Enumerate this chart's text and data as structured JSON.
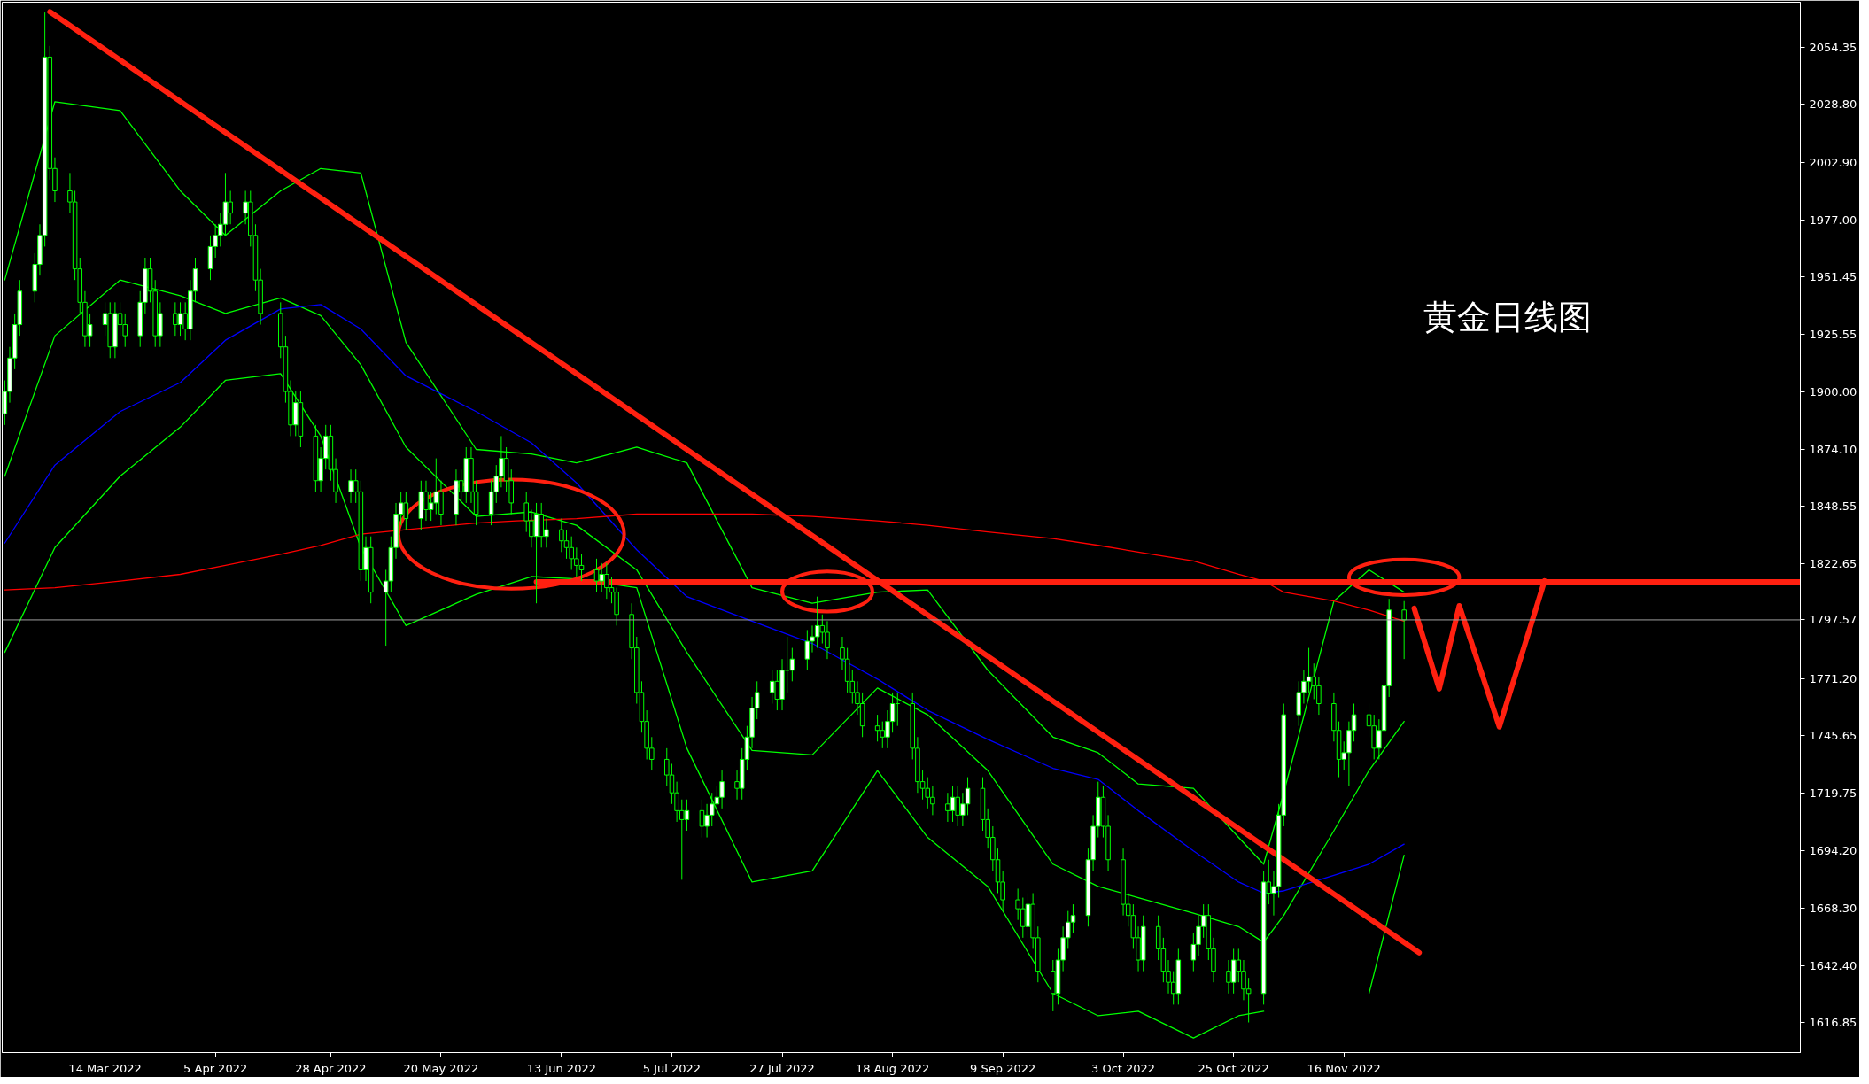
{
  "chart_data": {
    "type": "candlestick",
    "title": "黄金日线图",
    "x": [
      "2022-02-22",
      "2022-02-23",
      "2022-02-24",
      "2022-02-25",
      "2022-02-28",
      "2022-03-01",
      "2022-03-02",
      "2022-03-03",
      "2022-03-04",
      "2022-03-07",
      "2022-03-08",
      "2022-03-09",
      "2022-03-10",
      "2022-03-11",
      "2022-03-14",
      "2022-03-15",
      "2022-03-16",
      "2022-03-17",
      "2022-03-18",
      "2022-03-21",
      "2022-03-22",
      "2022-03-23",
      "2022-03-24",
      "2022-03-25",
      "2022-03-28",
      "2022-03-29",
      "2022-03-30",
      "2022-03-31",
      "2022-04-01",
      "2022-04-04",
      "2022-04-05",
      "2022-04-06",
      "2022-04-07",
      "2022-04-08",
      "2022-04-11",
      "2022-04-12",
      "2022-04-13",
      "2022-04-14",
      "2022-04-18",
      "2022-04-19",
      "2022-04-20",
      "2022-04-21",
      "2022-04-22",
      "2022-04-25",
      "2022-04-26",
      "2022-04-27",
      "2022-04-28",
      "2022-04-29",
      "2022-05-02",
      "2022-05-03",
      "2022-05-04",
      "2022-05-05",
      "2022-05-06",
      "2022-05-09",
      "2022-05-10",
      "2022-05-11",
      "2022-05-12",
      "2022-05-13",
      "2022-05-16",
      "2022-05-17",
      "2022-05-18",
      "2022-05-19",
      "2022-05-20",
      "2022-05-23",
      "2022-05-24",
      "2022-05-25",
      "2022-05-26",
      "2022-05-27",
      "2022-05-30",
      "2022-05-31",
      "2022-06-01",
      "2022-06-02",
      "2022-06-03",
      "2022-06-06",
      "2022-06-07",
      "2022-06-08",
      "2022-06-09",
      "2022-06-10",
      "2022-06-13",
      "2022-06-14",
      "2022-06-15",
      "2022-06-16",
      "2022-06-17",
      "2022-06-20",
      "2022-06-21",
      "2022-06-22",
      "2022-06-23",
      "2022-06-24",
      "2022-06-27",
      "2022-06-28",
      "2022-06-29",
      "2022-06-30",
      "2022-07-01",
      "2022-07-04",
      "2022-07-05",
      "2022-07-06",
      "2022-07-07",
      "2022-07-08",
      "2022-07-11",
      "2022-07-12",
      "2022-07-13",
      "2022-07-14",
      "2022-07-15",
      "2022-07-18",
      "2022-07-19",
      "2022-07-20",
      "2022-07-21",
      "2022-07-22",
      "2022-07-25",
      "2022-07-26",
      "2022-07-27",
      "2022-07-28",
      "2022-07-29",
      "2022-08-01",
      "2022-08-02",
      "2022-08-03",
      "2022-08-04",
      "2022-08-05",
      "2022-08-08",
      "2022-08-09",
      "2022-08-10",
      "2022-08-11",
      "2022-08-12",
      "2022-08-15",
      "2022-08-16",
      "2022-08-17",
      "2022-08-18",
      "2022-08-19",
      "2022-08-22",
      "2022-08-23",
      "2022-08-24",
      "2022-08-25",
      "2022-08-26",
      "2022-08-29",
      "2022-08-30",
      "2022-08-31",
      "2022-09-01",
      "2022-09-02",
      "2022-09-05",
      "2022-09-06",
      "2022-09-07",
      "2022-09-08",
      "2022-09-09",
      "2022-09-12",
      "2022-09-13",
      "2022-09-14",
      "2022-09-15",
      "2022-09-16",
      "2022-09-19",
      "2022-09-20",
      "2022-09-21",
      "2022-09-22",
      "2022-09-23",
      "2022-09-26",
      "2022-09-27",
      "2022-09-28",
      "2022-09-29",
      "2022-09-30",
      "2022-10-03",
      "2022-10-04",
      "2022-10-05",
      "2022-10-06",
      "2022-10-07",
      "2022-10-10",
      "2022-10-11",
      "2022-10-12",
      "2022-10-13",
      "2022-10-14",
      "2022-10-17",
      "2022-10-18",
      "2022-10-19",
      "2022-10-20",
      "2022-10-21",
      "2022-10-24",
      "2022-10-25",
      "2022-10-26",
      "2022-10-27",
      "2022-10-28",
      "2022-10-31",
      "2022-11-01",
      "2022-11-02",
      "2022-11-03",
      "2022-11-04",
      "2022-11-07",
      "2022-11-08",
      "2022-11-09",
      "2022-11-10",
      "2022-11-11",
      "2022-11-14",
      "2022-11-15",
      "2022-11-16",
      "2022-11-17",
      "2022-11-18",
      "2022-11-21",
      "2022-11-22",
      "2022-11-23",
      "2022-11-24",
      "2022-11-25",
      "2022-11-28"
    ],
    "ohlc": [
      [
        1890,
        1905,
        1885,
        1900
      ],
      [
        1900,
        1920,
        1895,
        1915
      ],
      [
        1915,
        1935,
        1910,
        1930
      ],
      [
        1930,
        1950,
        1925,
        1945
      ],
      [
        1945,
        1962,
        1940,
        1957
      ],
      [
        1957,
        1975,
        1952,
        1970
      ],
      [
        1970,
        2070,
        1965,
        2050
      ],
      [
        2050,
        2055,
        1995,
        2000
      ],
      [
        2000,
        2005,
        1985,
        1990
      ],
      [
        1990,
        1998,
        1980,
        1985
      ],
      [
        1985,
        1990,
        1950,
        1955
      ],
      [
        1955,
        1960,
        1935,
        1940
      ],
      [
        1940,
        1945,
        1920,
        1925
      ],
      [
        1925,
        1935,
        1920,
        1930
      ],
      [
        1930,
        1940,
        1925,
        1935
      ],
      [
        1935,
        1940,
        1915,
        1920
      ],
      [
        1920,
        1940,
        1915,
        1935
      ],
      [
        1935,
        1940,
        1925,
        1930
      ],
      [
        1930,
        1935,
        1920,
        1925
      ],
      [
        1925,
        1945,
        1920,
        1940
      ],
      [
        1940,
        1960,
        1935,
        1955
      ],
      [
        1955,
        1960,
        1940,
        1945
      ],
      [
        1945,
        1950,
        1920,
        1925
      ],
      [
        1925,
        1940,
        1920,
        1935
      ],
      [
        1935,
        1940,
        1925,
        1930
      ],
      [
        1930,
        1940,
        1925,
        1935
      ],
      [
        1935,
        1940,
        1923,
        1928
      ],
      [
        1928,
        1950,
        1923,
        1945
      ],
      [
        1945,
        1960,
        1940,
        1955
      ],
      [
        1955,
        1970,
        1950,
        1965
      ],
      [
        1965,
        1975,
        1960,
        1970
      ],
      [
        1970,
        1980,
        1965,
        1975
      ],
      [
        1975,
        1998,
        1970,
        1985
      ],
      [
        1985,
        1990,
        1975,
        1980
      ],
      [
        1980,
        1990,
        1975,
        1985
      ],
      [
        1985,
        1990,
        1965,
        1970
      ],
      [
        1970,
        1975,
        1945,
        1950
      ],
      [
        1950,
        1955,
        1930,
        1935
      ],
      [
        1935,
        1940,
        1915,
        1920
      ],
      [
        1920,
        1925,
        1895,
        1900
      ],
      [
        1900,
        1905,
        1880,
        1885
      ],
      [
        1885,
        1900,
        1880,
        1895
      ],
      [
        1895,
        1900,
        1875,
        1880
      ],
      [
        1880,
        1885,
        1855,
        1860
      ],
      [
        1860,
        1875,
        1855,
        1870
      ],
      [
        1870,
        1885,
        1865,
        1880
      ],
      [
        1880,
        1885,
        1860,
        1865
      ],
      [
        1865,
        1870,
        1850,
        1855
      ],
      [
        1855,
        1865,
        1850,
        1860
      ],
      [
        1860,
        1865,
        1850,
        1855
      ],
      [
        1855,
        1860,
        1815,
        1820
      ],
      [
        1820,
        1835,
        1815,
        1830
      ],
      [
        1830,
        1835,
        1805,
        1810
      ],
      [
        1810,
        1820,
        1786,
        1815
      ],
      [
        1815,
        1835,
        1810,
        1830
      ],
      [
        1830,
        1850,
        1825,
        1845
      ],
      [
        1845,
        1855,
        1840,
        1850
      ],
      [
        1850,
        1855,
        1838,
        1843
      ],
      [
        1843,
        1860,
        1838,
        1855
      ],
      [
        1855,
        1860,
        1842,
        1847
      ],
      [
        1847,
        1855,
        1842,
        1850
      ],
      [
        1850,
        1870,
        1845,
        1855
      ],
      [
        1855,
        1860,
        1840,
        1845
      ],
      [
        1845,
        1865,
        1840,
        1860
      ],
      [
        1860,
        1865,
        1850,
        1855
      ],
      [
        1855,
        1875,
        1850,
        1870
      ],
      [
        1870,
        1875,
        1850,
        1855
      ],
      [
        1855,
        1860,
        1840,
        1845
      ],
      [
        1845,
        1860,
        1840,
        1855
      ],
      [
        1855,
        1867,
        1850,
        1862
      ],
      [
        1862,
        1880,
        1857,
        1870
      ],
      [
        1870,
        1875,
        1855,
        1860
      ],
      [
        1860,
        1865,
        1845,
        1850
      ],
      [
        1850,
        1855,
        1837,
        1842
      ],
      [
        1842,
        1847,
        1830,
        1835
      ],
      [
        1835,
        1850,
        1805,
        1845
      ],
      [
        1845,
        1850,
        1830,
        1835
      ],
      [
        1835,
        1843,
        1830,
        1838
      ],
      [
        1838,
        1843,
        1828,
        1833
      ],
      [
        1833,
        1838,
        1825,
        1830
      ],
      [
        1830,
        1835,
        1820,
        1825
      ],
      [
        1825,
        1830,
        1817,
        1822
      ],
      [
        1822,
        1827,
        1815,
        1820
      ],
      [
        1820,
        1825,
        1810,
        1815
      ],
      [
        1815,
        1823,
        1810,
        1818
      ],
      [
        1818,
        1823,
        1807,
        1812
      ],
      [
        1812,
        1817,
        1805,
        1810
      ],
      [
        1810,
        1812,
        1795,
        1800
      ],
      [
        1800,
        1805,
        1780,
        1785
      ],
      [
        1785,
        1790,
        1760,
        1765
      ],
      [
        1765,
        1770,
        1747,
        1752
      ],
      [
        1752,
        1757,
        1735,
        1740
      ],
      [
        1740,
        1745,
        1730,
        1735
      ],
      [
        1735,
        1740,
        1723,
        1728
      ],
      [
        1728,
        1733,
        1715,
        1720
      ],
      [
        1720,
        1725,
        1707,
        1712
      ],
      [
        1712,
        1717,
        1681,
        1708
      ],
      [
        1708,
        1717,
        1703,
        1712
      ],
      [
        1712,
        1717,
        1700,
        1705
      ],
      [
        1705,
        1715,
        1700,
        1710
      ],
      [
        1710,
        1720,
        1705,
        1715
      ],
      [
        1715,
        1723,
        1710,
        1718
      ],
      [
        1718,
        1730,
        1713,
        1725
      ],
      [
        1725,
        1730,
        1717,
        1722
      ],
      [
        1722,
        1740,
        1717,
        1735
      ],
      [
        1735,
        1750,
        1730,
        1745
      ],
      [
        1745,
        1763,
        1740,
        1758
      ],
      [
        1758,
        1770,
        1753,
        1765
      ],
      [
        1765,
        1775,
        1760,
        1770
      ],
      [
        1770,
        1775,
        1757,
        1762
      ],
      [
        1762,
        1780,
        1757,
        1775
      ],
      [
        1775,
        1790,
        1765,
        1775
      ],
      [
        1775,
        1785,
        1770,
        1780
      ],
      [
        1780,
        1793,
        1775,
        1788
      ],
      [
        1788,
        1795,
        1783,
        1790
      ],
      [
        1790,
        1808,
        1785,
        1795
      ],
      [
        1795,
        1800,
        1787,
        1792
      ],
      [
        1792,
        1797,
        1780,
        1785
      ],
      [
        1785,
        1790,
        1775,
        1780
      ],
      [
        1780,
        1785,
        1765,
        1770
      ],
      [
        1770,
        1775,
        1760,
        1765
      ],
      [
        1765,
        1770,
        1755,
        1760
      ],
      [
        1760,
        1765,
        1745,
        1750
      ],
      [
        1750,
        1755,
        1743,
        1748
      ],
      [
        1748,
        1752,
        1740,
        1745
      ],
      [
        1745,
        1757,
        1740,
        1752
      ],
      [
        1752,
        1765,
        1747,
        1760
      ],
      [
        1760,
        1765,
        1750,
        1760
      ],
      [
        1760,
        1765,
        1735,
        1740
      ],
      [
        1740,
        1745,
        1720,
        1725
      ],
      [
        1725,
        1730,
        1717,
        1722
      ],
      [
        1722,
        1727,
        1713,
        1718
      ],
      [
        1718,
        1723,
        1710,
        1715
      ],
      [
        1715,
        1720,
        1707,
        1712
      ],
      [
        1712,
        1723,
        1707,
        1718
      ],
      [
        1718,
        1723,
        1705,
        1710
      ],
      [
        1710,
        1720,
        1705,
        1715
      ],
      [
        1715,
        1727,
        1710,
        1722
      ],
      [
        1722,
        1727,
        1703,
        1708
      ],
      [
        1708,
        1713,
        1695,
        1700
      ],
      [
        1700,
        1705,
        1685,
        1690
      ],
      [
        1690,
        1695,
        1675,
        1680
      ],
      [
        1680,
        1685,
        1667,
        1672
      ],
      [
        1672,
        1677,
        1663,
        1668
      ],
      [
        1668,
        1673,
        1655,
        1660
      ],
      [
        1660,
        1675,
        1655,
        1670
      ],
      [
        1670,
        1675,
        1650,
        1655
      ],
      [
        1655,
        1660,
        1635,
        1640
      ],
      [
        1640,
        1645,
        1622,
        1630
      ],
      [
        1630,
        1650,
        1625,
        1645
      ],
      [
        1645,
        1660,
        1640,
        1655
      ],
      [
        1655,
        1667,
        1650,
        1662
      ],
      [
        1662,
        1670,
        1657,
        1665
      ],
      [
        1665,
        1695,
        1660,
        1690
      ],
      [
        1690,
        1710,
        1685,
        1705
      ],
      [
        1705,
        1725,
        1700,
        1718
      ],
      [
        1718,
        1723,
        1700,
        1705
      ],
      [
        1705,
        1710,
        1685,
        1690
      ],
      [
        1690,
        1695,
        1665,
        1670
      ],
      [
        1670,
        1675,
        1660,
        1665
      ],
      [
        1665,
        1670,
        1650,
        1655
      ],
      [
        1655,
        1660,
        1640,
        1645
      ],
      [
        1645,
        1665,
        1640,
        1660
      ],
      [
        1660,
        1665,
        1645,
        1650
      ],
      [
        1650,
        1655,
        1635,
        1640
      ],
      [
        1640,
        1645,
        1630,
        1635
      ],
      [
        1635,
        1640,
        1625,
        1630
      ],
      [
        1630,
        1650,
        1625,
        1645
      ],
      [
        1645,
        1657,
        1640,
        1652
      ],
      [
        1652,
        1665,
        1647,
        1660
      ],
      [
        1660,
        1670,
        1655,
        1665
      ],
      [
        1665,
        1670,
        1645,
        1650
      ],
      [
        1650,
        1655,
        1635,
        1640
      ],
      [
        1640,
        1645,
        1630,
        1635
      ],
      [
        1635,
        1650,
        1630,
        1645
      ],
      [
        1645,
        1650,
        1635,
        1640
      ],
      [
        1640,
        1645,
        1627,
        1632
      ],
      [
        1632,
        1637,
        1617,
        1630
      ],
      [
        1630,
        1685,
        1625,
        1680
      ],
      [
        1680,
        1690,
        1670,
        1675
      ],
      [
        1675,
        1685,
        1665,
        1678
      ],
      [
        1678,
        1715,
        1673,
        1710
      ],
      [
        1710,
        1760,
        1705,
        1755
      ],
      [
        1755,
        1770,
        1750,
        1765
      ],
      [
        1765,
        1775,
        1760,
        1770
      ],
      [
        1770,
        1785,
        1765,
        1772
      ],
      [
        1772,
        1778,
        1762,
        1768
      ],
      [
        1768,
        1772,
        1755,
        1760
      ],
      [
        1760,
        1765,
        1743,
        1748
      ],
      [
        1748,
        1752,
        1727,
        1735
      ],
      [
        1735,
        1743,
        1730,
        1738
      ],
      [
        1738,
        1752,
        1723,
        1748
      ],
      [
        1748,
        1760,
        1743,
        1755
      ],
      [
        1755,
        1760,
        1745,
        1750
      ],
      [
        1750,
        1755,
        1735,
        1740
      ],
      [
        1740,
        1753,
        1735,
        1748
      ],
      [
        1748,
        1773,
        1743,
        1768
      ],
      [
        1768,
        1807,
        1763,
        1802
      ],
      [
        1802,
        1806,
        1780,
        1797.57
      ]
    ],
    "series": [
      {
        "type": "line",
        "color": "#00ff00",
        "x": [
          "2022-02-22",
          "2022-03-04",
          "2022-03-17",
          "2022-03-29",
          "2022-04-07",
          "2022-04-18",
          "2022-04-26",
          "2022-05-04",
          "2022-05-13",
          "2022-05-27",
          "2022-06-07",
          "2022-06-16",
          "2022-06-28",
          "2022-07-08",
          "2022-07-21",
          "2022-08-02",
          "2022-08-15",
          "2022-08-25",
          "2022-09-06",
          "2022-09-19",
          "2022-09-28",
          "2022-10-06",
          "2022-10-17",
          "2022-10-26",
          "2022-10-31",
          "2022-11-04",
          "2022-11-14",
          "2022-11-21",
          "2022-11-28"
        ],
        "values": [
          1950,
          2030,
          2026,
          1990,
          1970,
          1990,
          2000,
          1998,
          1922,
          1874,
          1872,
          1868,
          1875,
          1868,
          1812,
          1805,
          1810,
          1811,
          1775,
          1745,
          1738,
          1724,
          1722,
          1700,
          1688,
          1720,
          1806,
          1820,
          1810
        ]
      },
      {
        "type": "line",
        "color": "#00ff00",
        "x": [
          "2022-02-22",
          "2022-03-04",
          "2022-03-17",
          "2022-03-29",
          "2022-04-07",
          "2022-04-18",
          "2022-04-26",
          "2022-05-04",
          "2022-05-13",
          "2022-05-27",
          "2022-06-07",
          "2022-06-16",
          "2022-06-28",
          "2022-07-08",
          "2022-07-21",
          "2022-08-02",
          "2022-08-15",
          "2022-08-25",
          "2022-09-06",
          "2022-09-19",
          "2022-09-28",
          "2022-10-06",
          "2022-10-17",
          "2022-10-26",
          "2022-10-31",
          "2022-11-04",
          "2022-11-14",
          "2022-11-21",
          "2022-11-28"
        ],
        "values": [
          1862,
          1925,
          1950,
          1943,
          1935,
          1942,
          1934,
          1912,
          1875,
          1844,
          1846,
          1840,
          1820,
          1783,
          1739,
          1737,
          1767,
          1755,
          1730,
          1688,
          1678,
          1673,
          1666,
          1660,
          1653,
          1665,
          1703,
          1730,
          1752
        ]
      },
      {
        "type": "line",
        "color": "#00ff00",
        "x": [
          "2022-02-22",
          "2022-03-04",
          "2022-03-17",
          "2022-03-29",
          "2022-04-07",
          "2022-04-18",
          "2022-04-26",
          "2022-05-04",
          "2022-05-13",
          "2022-05-27",
          "2022-06-07",
          "2022-06-16",
          "2022-06-28",
          "2022-07-08",
          "2022-07-21",
          "2022-08-02",
          "2022-08-15",
          "2022-08-25",
          "2022-09-06",
          "2022-09-19",
          "2022-09-28",
          "2022-10-06",
          "2022-10-17",
          "2022-10-26",
          "2022-10-31",
          "2022-11-04",
          "2022-11-14",
          "2022-11-21",
          "2022-11-28"
        ],
        "values": [
          1783,
          1830,
          1862,
          1884,
          1905,
          1908,
          1880,
          1830,
          1795,
          1809,
          1817,
          1816,
          1812,
          1740,
          1680,
          1685,
          1730,
          1700,
          1678,
          1630,
          1620,
          1622,
          1610,
          1620,
          1622,
          null,
          null,
          1630,
          1692
        ]
      },
      {
        "type": "line",
        "color": "#0000ff",
        "x": [
          "2022-02-22",
          "2022-03-04",
          "2022-03-17",
          "2022-03-29",
          "2022-04-07",
          "2022-04-18",
          "2022-04-26",
          "2022-05-04",
          "2022-05-13",
          "2022-05-27",
          "2022-06-07",
          "2022-06-16",
          "2022-06-28",
          "2022-07-08",
          "2022-07-21",
          "2022-08-02",
          "2022-08-15",
          "2022-08-25",
          "2022-09-06",
          "2022-09-19",
          "2022-09-28",
          "2022-10-06",
          "2022-10-17",
          "2022-10-26",
          "2022-10-31",
          "2022-11-04",
          "2022-11-14",
          "2022-11-21",
          "2022-11-28"
        ],
        "values": [
          1832,
          1867,
          1891,
          1904,
          1923,
          1937,
          1939,
          1928,
          1907,
          1891,
          1877,
          1859,
          1829,
          1808,
          1797,
          1787,
          1771,
          1757,
          1744,
          1731,
          1726,
          1712,
          1694,
          1680,
          1675,
          1676,
          1683,
          1688,
          1697
        ]
      },
      {
        "type": "line",
        "color": "#ff0000",
        "x": [
          "2022-02-22",
          "2022-03-04",
          "2022-03-17",
          "2022-03-29",
          "2022-04-07",
          "2022-04-18",
          "2022-04-26",
          "2022-05-04",
          "2022-05-13",
          "2022-05-27",
          "2022-06-04",
          "2022-06-16",
          "2022-06-28",
          "2022-07-08",
          "2022-07-21",
          "2022-08-02",
          "2022-08-15",
          "2022-08-25",
          "2022-09-06",
          "2022-09-19",
          "2022-09-28",
          "2022-10-06",
          "2022-10-17",
          "2022-10-26",
          "2022-10-31",
          "2022-11-04",
          "2022-11-14",
          "2022-11-21",
          "2022-11-28"
        ],
        "values": [
          1811,
          1812,
          1815,
          1818,
          1822,
          1827,
          1831,
          1836,
          1838,
          1841,
          1842,
          1843,
          1845,
          1845,
          1845,
          1844,
          1842,
          1840,
          1837,
          1834,
          1831,
          1828,
          1824,
          1818,
          1815,
          1810,
          1806,
          1802,
          1797
        ]
      },
      {
        "type": "line",
        "color": "#ff2010",
        "x": [
          "2022-03-03",
          "2022-12-01"
        ],
        "values": [
          2070.3,
          1648.3
        ]
      },
      {
        "type": "line",
        "color": "#ff2010",
        "x": [
          "2022-06-08",
          "2023-02-15"
        ],
        "values": [
          1814.6,
          1814.6
        ]
      },
      {
        "type": "line",
        "color": "#ff2010",
        "x": [
          "2022-11-30",
          "2022-12-05",
          "2022-12-09",
          "2022-12-17",
          "2022-12-26"
        ],
        "values": [
          1802.8,
          1766.6,
          1803.9,
          1749.6,
          1815.1
        ]
      }
    ],
    "ref_lines": [
      {
        "axis": "y",
        "value": 1797.57,
        "label": "1797.57",
        "color": "#a0a0a0"
      }
    ],
    "xlim": [
      "2022-02-21T12:00",
      "2023-02-15"
    ],
    "xticks": [
      {
        "value": "2022-03-14",
        "label": "14 Mar 2022"
      },
      {
        "value": "2022-04-05",
        "label": "5 Apr 2022"
      },
      {
        "value": "2022-04-28",
        "label": "28 Apr 2022"
      },
      {
        "value": "2022-05-20",
        "label": "20 May 2022"
      },
      {
        "value": "2022-06-13",
        "label": "13 Jun 2022"
      },
      {
        "value": "2022-07-05",
        "label": "5 Jul 2022"
      },
      {
        "value": "2022-07-27",
        "label": "27 Jul 2022"
      },
      {
        "value": "2022-08-18",
        "label": "18 Aug 2022"
      },
      {
        "value": "2022-09-09",
        "label": "9 Sep 2022"
      },
      {
        "value": "2022-10-03",
        "label": "3 Oct 2022"
      },
      {
        "value": "2022-10-25",
        "label": "25 Oct 2022"
      },
      {
        "value": "2022-11-16",
        "label": "16 Nov 2022"
      }
    ],
    "ylim": [
      1603.5,
      2074.6
    ],
    "yticks": [
      2054.35,
      {
        "value": 2028.8,
        "label": "2028.80"
      },
      {
        "value": 2002.9,
        "label": "2002.90"
      },
      {
        "value": 1977,
        "label": "1977.00"
      },
      1951.45,
      1925.55,
      {
        "value": 1900,
        "label": "1900.00"
      },
      {
        "value": 1874.1,
        "label": "1874.10"
      },
      1848.55,
      1822.65,
      {
        "value": 1771.2,
        "label": "1771.20"
      },
      1745.65,
      1719.75,
      {
        "value": 1694.2,
        "label": "1694.20"
      },
      {
        "value": 1668.3,
        "label": "1668.30"
      },
      {
        "value": 1642.4,
        "label": "1642.40"
      },
      1616.85
    ]
  }
}
